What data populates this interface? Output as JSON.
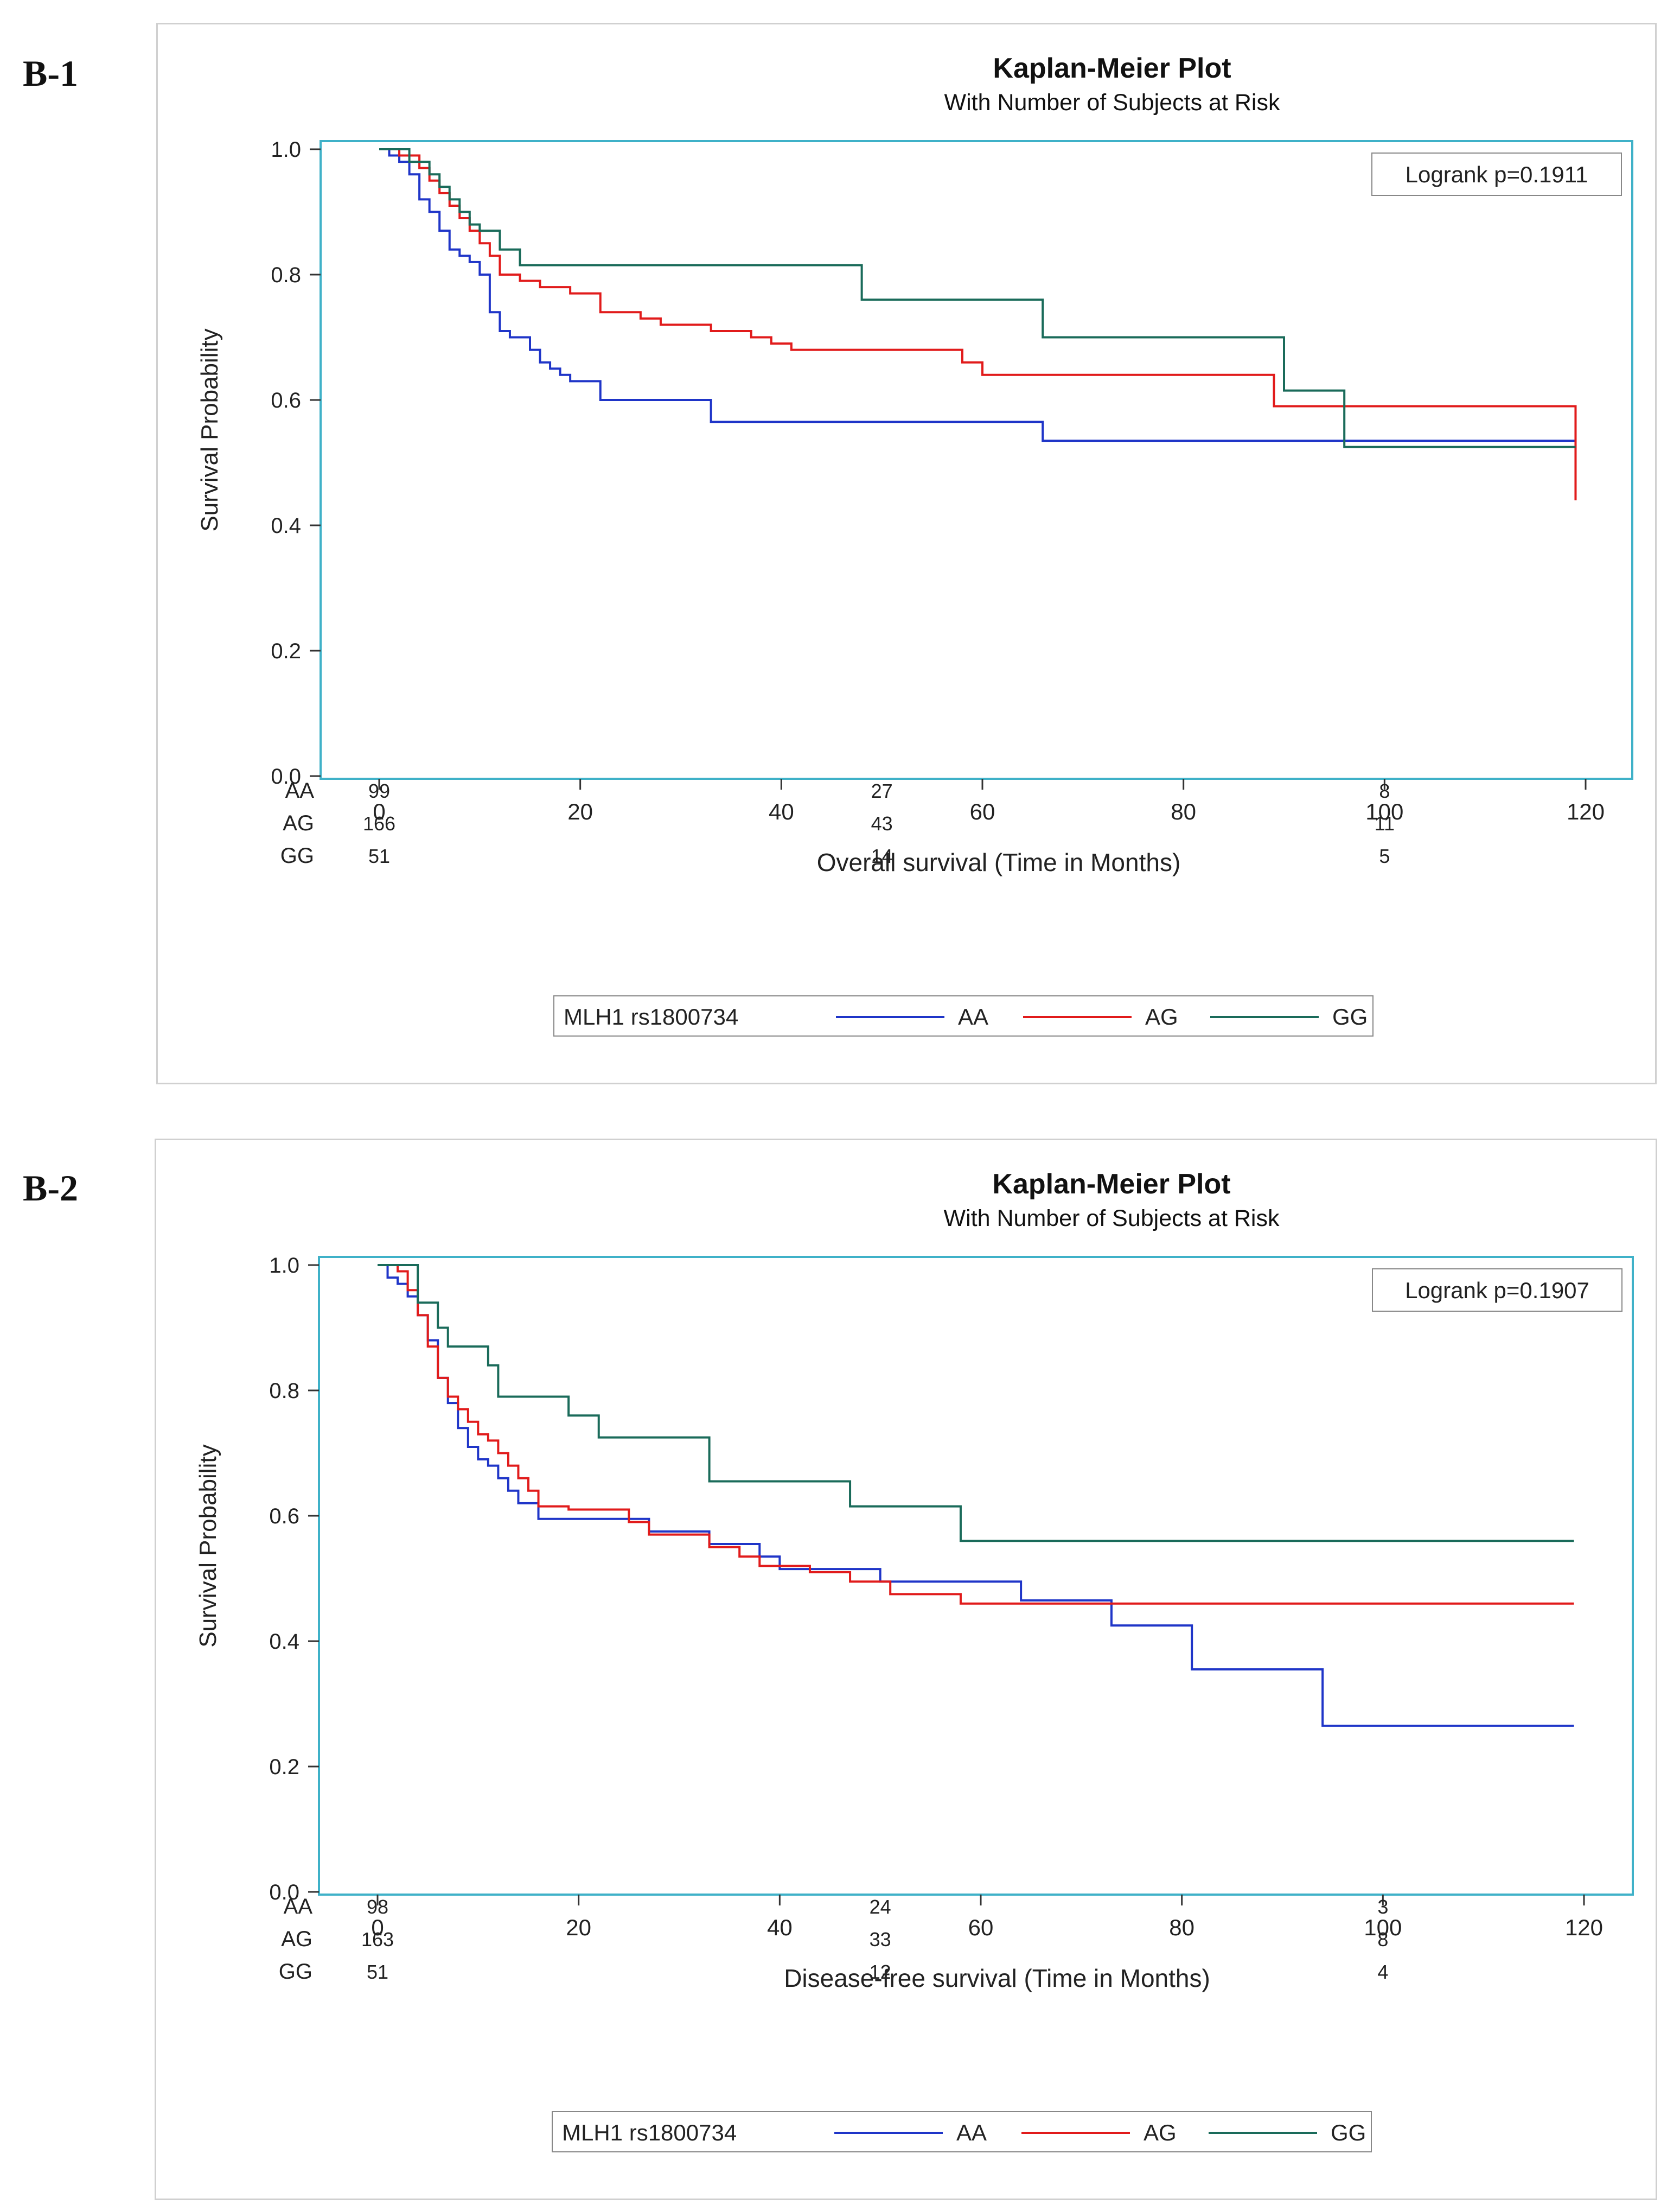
{
  "colors": {
    "AA": "#1f35c8",
    "AG": "#e11b1b",
    "GG": "#1a6b5a",
    "frame": "#3fb1c8"
  },
  "panels": [
    {
      "tag": "B-1",
      "title": "Kaplan-Meier Plot",
      "subtitle": "With Number of Subjects at Risk",
      "ylabel": "Survival Probability",
      "xlabel": "Overall survival (Time in Months)",
      "logrank": "Logrank p=0.1911",
      "legend_title": "MLH1 rs1800734",
      "chart_data": {
        "type": "line",
        "step": true,
        "xlim": [
          0,
          120
        ],
        "ylim": [
          0,
          1
        ],
        "x_ticks": [
          0,
          20,
          40,
          60,
          80,
          100,
          120
        ],
        "y_ticks": [
          "0.0",
          "0.2",
          "0.4",
          "0.6",
          "0.8",
          "1.0"
        ],
        "series": [
          {
            "name": "AA",
            "x": [
              0,
              1,
              2,
              3,
              4,
              5,
              6,
              7,
              8,
              9,
              10,
              11,
              12,
              13,
              14,
              15,
              16,
              17,
              18,
              19,
              20,
              22,
              33,
              66,
              119
            ],
            "y": [
              1,
              0.99,
              0.98,
              0.96,
              0.92,
              0.9,
              0.87,
              0.84,
              0.83,
              0.82,
              0.8,
              0.74,
              0.71,
              0.7,
              0.7,
              0.68,
              0.66,
              0.65,
              0.64,
              0.63,
              0.63,
              0.6,
              0.565,
              0.535,
              0.535
            ]
          },
          {
            "name": "AG",
            "x": [
              0,
              2,
              4,
              5,
              6,
              7,
              8,
              9,
              10,
              11,
              12,
              14,
              16,
              19,
              22,
              26,
              28,
              33,
              37,
              39,
              41,
              58,
              60,
              89,
              119,
              119
            ],
            "y": [
              1,
              0.99,
              0.97,
              0.95,
              0.93,
              0.91,
              0.89,
              0.87,
              0.85,
              0.83,
              0.8,
              0.79,
              0.78,
              0.77,
              0.74,
              0.73,
              0.72,
              0.71,
              0.7,
              0.69,
              0.68,
              0.66,
              0.64,
              0.59,
              0.59,
              0.44
            ]
          },
          {
            "name": "GG",
            "x": [
              0,
              3,
              5,
              6,
              7,
              8,
              9,
              10,
              12,
              14,
              48,
              66,
              90,
              96,
              119
            ],
            "y": [
              1,
              0.98,
              0.96,
              0.94,
              0.92,
              0.9,
              0.88,
              0.87,
              0.84,
              0.815,
              0.76,
              0.7,
              0.615,
              0.525,
              0.525
            ]
          }
        ],
        "at_risk": {
          "times": [
            0,
            50,
            100
          ],
          "rows": [
            {
              "label": "AA",
              "counts": [
                "99",
                "27",
                "8"
              ]
            },
            {
              "label": "AG",
              "counts": [
                "166",
                "43",
                "11"
              ]
            },
            {
              "label": "GG",
              "counts": [
                "51",
                "14",
                "5"
              ]
            }
          ]
        }
      }
    },
    {
      "tag": "B-2",
      "title": "Kaplan-Meier Plot",
      "subtitle": "With Number of Subjects at Risk",
      "ylabel": "Survival Probability",
      "xlabel": "Disease-free survival (Time in Months)",
      "logrank": "Logrank p=0.1907",
      "legend_title": "MLH1 rs1800734",
      "chart_data": {
        "type": "line",
        "step": true,
        "xlim": [
          0,
          120
        ],
        "ylim": [
          0,
          1
        ],
        "x_ticks": [
          0,
          20,
          40,
          60,
          80,
          100,
          120
        ],
        "y_ticks": [
          "0.0",
          "0.2",
          "0.4",
          "0.6",
          "0.8",
          "1.0"
        ],
        "series": [
          {
            "name": "AA",
            "x": [
              0,
              1,
              2,
              3,
              4,
              5,
              6,
              7,
              8,
              9,
              10,
              11,
              12,
              13,
              14,
              16,
              27,
              33,
              38,
              40,
              50,
              64,
              73,
              81,
              94,
              119
            ],
            "y": [
              1,
              0.98,
              0.97,
              0.95,
              0.92,
              0.88,
              0.82,
              0.78,
              0.74,
              0.71,
              0.69,
              0.68,
              0.66,
              0.64,
              0.62,
              0.595,
              0.575,
              0.555,
              0.535,
              0.515,
              0.495,
              0.465,
              0.425,
              0.355,
              0.265,
              0.265
            ]
          },
          {
            "name": "AG",
            "x": [
              0,
              2,
              3,
              4,
              5,
              6,
              7,
              8,
              9,
              10,
              11,
              12,
              13,
              14,
              15,
              16,
              19,
              25,
              27,
              33,
              36,
              38,
              43,
              47,
              51,
              58,
              119
            ],
            "y": [
              1,
              0.99,
              0.96,
              0.92,
              0.87,
              0.82,
              0.79,
              0.77,
              0.75,
              0.73,
              0.72,
              0.7,
              0.68,
              0.66,
              0.64,
              0.615,
              0.61,
              0.59,
              0.57,
              0.55,
              0.535,
              0.52,
              0.51,
              0.495,
              0.475,
              0.46,
              0.46
            ]
          },
          {
            "name": "GG",
            "x": [
              0,
              4,
              6,
              7,
              11,
              12,
              19,
              22,
              33,
              47,
              58,
              119
            ],
            "y": [
              1,
              0.94,
              0.9,
              0.87,
              0.84,
              0.79,
              0.76,
              0.725,
              0.655,
              0.615,
              0.56,
              0.56
            ]
          }
        ],
        "at_risk": {
          "times": [
            0,
            50,
            100
          ],
          "rows": [
            {
              "label": "AA",
              "counts": [
                "98",
                "24",
                "3"
              ]
            },
            {
              "label": "AG",
              "counts": [
                "163",
                "33",
                "8"
              ]
            },
            {
              "label": "GG",
              "counts": [
                "51",
                "12",
                "4"
              ]
            }
          ]
        }
      }
    }
  ]
}
